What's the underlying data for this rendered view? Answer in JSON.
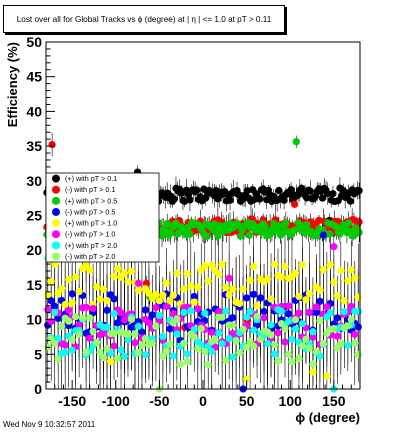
{
  "header": {
    "title": "Lost over all for Global Tracks vs ϕ (degree) at | η | <= 1.0 at pT > 0.11"
  },
  "footer": {
    "timestamp": "Wed Nov  9 10:32:57 2011"
  },
  "chart_data": {
    "type": "scatter",
    "title": "Lost over all for Global Tracks vs ϕ (degree) at | η | <= 1.0 at pT > 0.11",
    "xlabel": "ϕ (degree)",
    "ylabel": "Efficiency (%)",
    "xlim": [
      -180,
      180
    ],
    "ylim": [
      0,
      50
    ],
    "x_ticks": [
      -150,
      -100,
      -50,
      0,
      50,
      100,
      150
    ],
    "y_ticks": [
      0,
      5,
      10,
      15,
      20,
      25,
      30,
      35,
      40,
      45,
      50
    ],
    "grid": false,
    "legend_position": "left-middle",
    "series": [
      {
        "name": "(+) with pT > 0.1",
        "color": "#000000",
        "typical_value": 28,
        "spread": 1.0
      },
      {
        "name": "(-) with pT > 0.1",
        "color": "#ff0000",
        "typical_value": 23.5,
        "spread": 1.0
      },
      {
        "name": "(+) with pT > 0.5",
        "color": "#00cc00",
        "typical_value": 23,
        "spread": 1.0
      },
      {
        "name": "(-) with pT > 0.5",
        "color": "#0000ff",
        "typical_value": 11,
        "spread": 3.0
      },
      {
        "name": "(+) with pT > 1.0",
        "color": "#ffff00",
        "typical_value": 15,
        "spread": 3.0
      },
      {
        "name": "(-) with pT > 1.0",
        "color": "#ff00ff",
        "typical_value": 9,
        "spread": 3.0
      },
      {
        "name": "(+) with pT > 2.0",
        "color": "#00ffff",
        "typical_value": 8,
        "spread": 3.5
      },
      {
        "name": "(-) with pT > 2.0",
        "color": "#99ff66",
        "typical_value": 7,
        "spread": 3.5
      }
    ]
  }
}
